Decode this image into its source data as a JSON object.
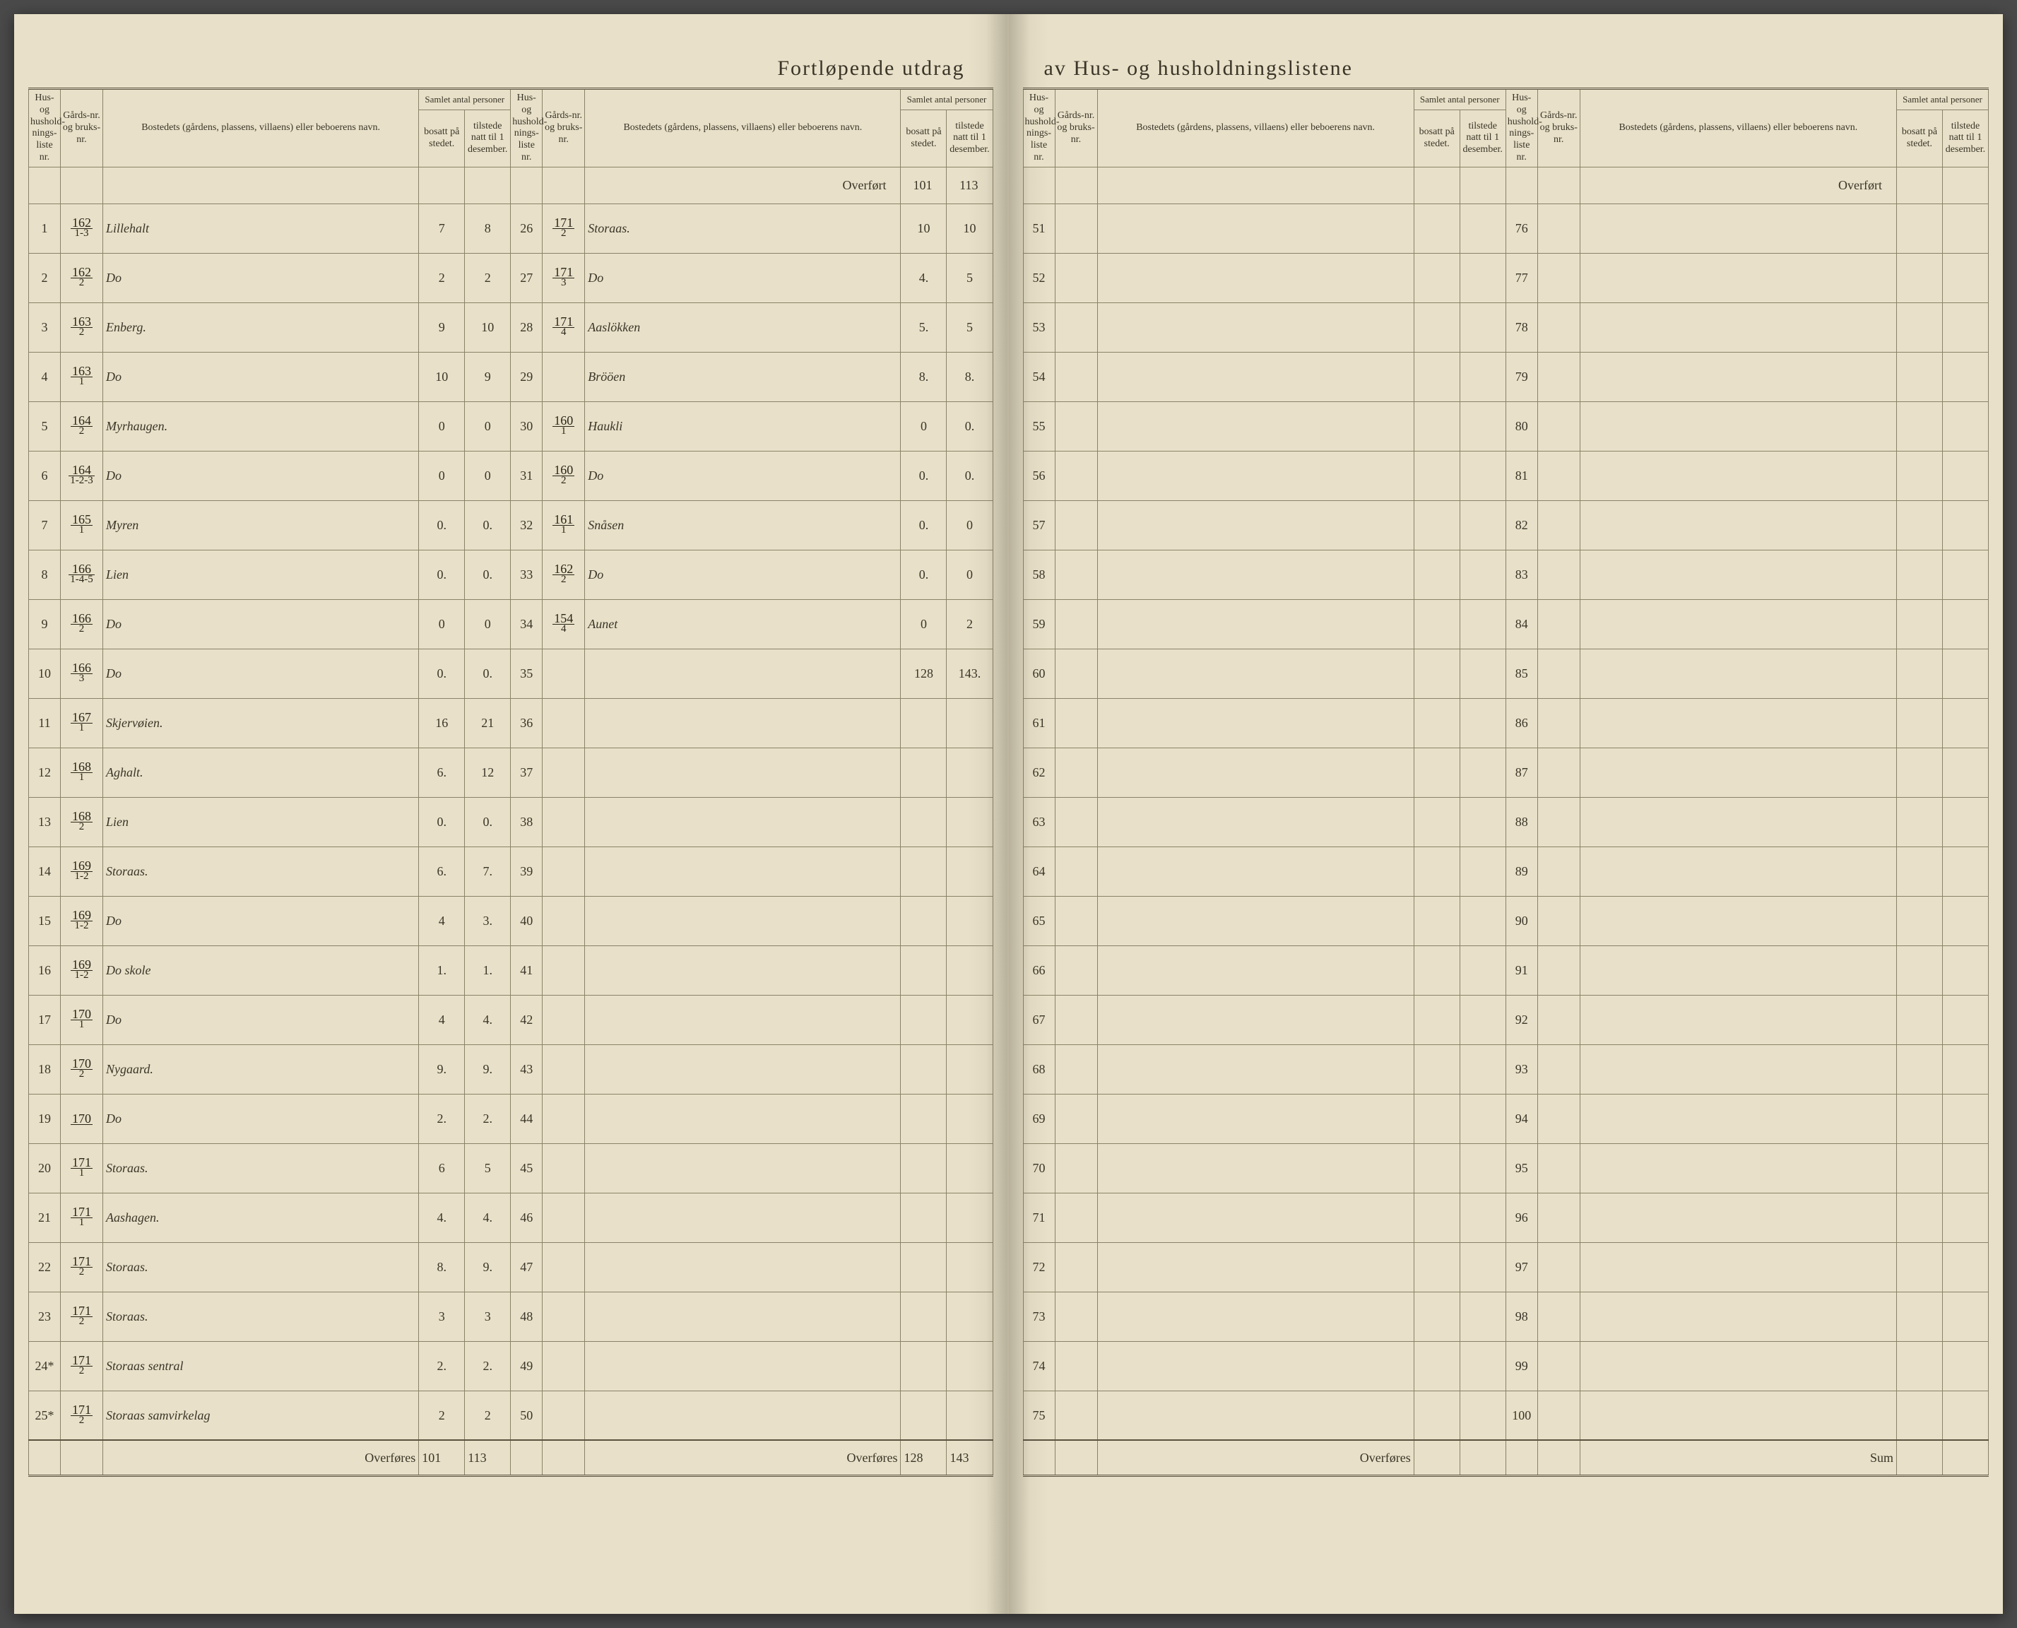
{
  "title_left": "Fortløpende utdrag",
  "title_right": "av Hus- og husholdningslistene",
  "headers": {
    "hus_nr": "Hus- og hushold-nings-liste nr.",
    "gard_nr": "Gårds-nr. og bruks-nr.",
    "bosted": "Bostedets (gårdens, plassens, villaens) eller beboerens navn.",
    "samlet": "Samlet antal personer",
    "bosatt": "bosatt på stedet.",
    "tilstede": "tilstede natt til 1 desember."
  },
  "overfort": "Overført",
  "overfores": "Overføres",
  "sum": "Sum",
  "left_section1": {
    "rows": [
      {
        "nr": "1",
        "gard_n": "162",
        "gard_d": "1-3",
        "bosted": "Lillehalt",
        "bosatt": "7",
        "tilstede": "8"
      },
      {
        "nr": "2",
        "gard_n": "162",
        "gard_d": "2",
        "bosted": "Do",
        "bosatt": "2",
        "tilstede": "2"
      },
      {
        "nr": "3",
        "gard_n": "163",
        "gard_d": "2",
        "bosted": "Enberg.",
        "bosatt": "9",
        "tilstede": "10"
      },
      {
        "nr": "4",
        "gard_n": "163",
        "gard_d": "1",
        "bosted": "Do",
        "bosatt": "10",
        "tilstede": "9"
      },
      {
        "nr": "5",
        "gard_n": "164",
        "gard_d": "2",
        "bosted": "Myrhaugen.",
        "bosatt": "0",
        "tilstede": "0"
      },
      {
        "nr": "6",
        "gard_n": "164",
        "gard_d": "1-2-3",
        "bosted": "Do",
        "bosatt": "0",
        "tilstede": "0"
      },
      {
        "nr": "7",
        "gard_n": "165",
        "gard_d": "1",
        "bosted": "Myren",
        "bosatt": "0.",
        "tilstede": "0."
      },
      {
        "nr": "8",
        "gard_n": "166",
        "gard_d": "1-4-5",
        "bosted": "Lien",
        "bosatt": "0.",
        "tilstede": "0."
      },
      {
        "nr": "9",
        "gard_n": "166",
        "gard_d": "2",
        "bosted": "Do",
        "bosatt": "0",
        "tilstede": "0"
      },
      {
        "nr": "10",
        "gard_n": "166",
        "gard_d": "3",
        "bosted": "Do",
        "bosatt": "0.",
        "tilstede": "0."
      },
      {
        "nr": "11",
        "gard_n": "167",
        "gard_d": "1",
        "bosted": "Skjervøien.",
        "bosatt": "16",
        "tilstede": "21"
      },
      {
        "nr": "12",
        "gard_n": "168",
        "gard_d": "1",
        "bosted": "Aghalt.",
        "bosatt": "6.",
        "tilstede": "12"
      },
      {
        "nr": "13",
        "gard_n": "168",
        "gard_d": "2",
        "bosted": "Lien",
        "bosatt": "0.",
        "tilstede": "0."
      },
      {
        "nr": "14",
        "gard_n": "169",
        "gard_d": "1-2",
        "bosted": "Storaas.",
        "bosatt": "6.",
        "tilstede": "7."
      },
      {
        "nr": "15",
        "gard_n": "169",
        "gard_d": "1-2",
        "bosted": "Do",
        "bosatt": "4",
        "tilstede": "3."
      },
      {
        "nr": "16",
        "gard_n": "169",
        "gard_d": "1-2",
        "bosted": "Do   skole",
        "bosatt": "1.",
        "tilstede": "1."
      },
      {
        "nr": "17",
        "gard_n": "170",
        "gard_d": "1",
        "bosted": "Do",
        "bosatt": "4",
        "tilstede": "4."
      },
      {
        "nr": "18",
        "gard_n": "170",
        "gard_d": "2",
        "bosted": "Nygaard.",
        "bosatt": "9.",
        "tilstede": "9."
      },
      {
        "nr": "19",
        "gard_n": "170",
        "gard_d": "",
        "bosted": "Do",
        "bosatt": "2.",
        "tilstede": "2."
      },
      {
        "nr": "20",
        "gard_n": "171",
        "gard_d": "1",
        "bosted": "Storaas.",
        "bosatt": "6",
        "tilstede": "5"
      },
      {
        "nr": "21",
        "gard_n": "171",
        "gard_d": "1",
        "bosted": "Aashagen.",
        "bosatt": "4.",
        "tilstede": "4."
      },
      {
        "nr": "22",
        "gard_n": "171",
        "gard_d": "2",
        "bosted": "Storaas.",
        "bosatt": "8.",
        "tilstede": "9."
      },
      {
        "nr": "23",
        "gard_n": "171",
        "gard_d": "2",
        "bosted": "Storaas.",
        "bosatt": "3",
        "tilstede": "3"
      },
      {
        "nr": "24*",
        "gard_n": "171",
        "gard_d": "2",
        "bosted": "Storaas sentral",
        "bosatt": "2.",
        "tilstede": "2."
      },
      {
        "nr": "25*",
        "gard_n": "171",
        "gard_d": "2",
        "bosted": "Storaas samvirkelag",
        "bosatt": "2",
        "tilstede": "2"
      }
    ],
    "footer_bosatt": "101",
    "footer_tilstede": "113"
  },
  "left_section2": {
    "overfort_bosatt": "101",
    "overfort_tilstede": "113",
    "rows": [
      {
        "nr": "26",
        "gard_n": "171",
        "gard_d": "2",
        "bosted": "Storaas.",
        "bosatt": "10",
        "tilstede": "10"
      },
      {
        "nr": "27",
        "gard_n": "171",
        "gard_d": "3",
        "bosted": "Do",
        "bosatt": "4.",
        "tilstede": "5"
      },
      {
        "nr": "28",
        "gard_n": "171",
        "gard_d": "4",
        "bosted": "Aaslökken",
        "bosatt": "5.",
        "tilstede": "5"
      },
      {
        "nr": "29",
        "gard_n": "",
        "gard_d": "",
        "bosted": "Brööen",
        "bosatt": "8.",
        "tilstede": "8."
      },
      {
        "nr": "30",
        "gard_n": "160",
        "gard_d": "1",
        "bosted": "Haukli",
        "bosatt": "0",
        "tilstede": "0."
      },
      {
        "nr": "31",
        "gard_n": "160",
        "gard_d": "2",
        "bosted": "Do",
        "bosatt": "0.",
        "tilstede": "0."
      },
      {
        "nr": "32",
        "gard_n": "161",
        "gard_d": "1",
        "bosted": "Snåsen",
        "bosatt": "0.",
        "tilstede": "0"
      },
      {
        "nr": "33",
        "gard_n": "162",
        "gard_d": "2",
        "bosted": "Do",
        "bosatt": "0.",
        "tilstede": "0"
      },
      {
        "nr": "34",
        "gard_n": "154",
        "gard_d": "4",
        "bosted": "Aunet",
        "bosatt": "0",
        "tilstede": "2"
      },
      {
        "nr": "35",
        "gard_n": "",
        "gard_d": "",
        "bosted": "",
        "bosatt": "128",
        "tilstede": "143."
      },
      {
        "nr": "36"
      },
      {
        "nr": "37"
      },
      {
        "nr": "38"
      },
      {
        "nr": "39"
      },
      {
        "nr": "40"
      },
      {
        "nr": "41"
      },
      {
        "nr": "42"
      },
      {
        "nr": "43"
      },
      {
        "nr": "44"
      },
      {
        "nr": "45"
      },
      {
        "nr": "46"
      },
      {
        "nr": "47"
      },
      {
        "nr": "48"
      },
      {
        "nr": "49"
      },
      {
        "nr": "50"
      }
    ],
    "footer_bosatt": "128",
    "footer_tilstede": "143"
  },
  "right_section1": {
    "rows": [
      {
        "nr": "51"
      },
      {
        "nr": "52"
      },
      {
        "nr": "53"
      },
      {
        "nr": "54"
      },
      {
        "nr": "55"
      },
      {
        "nr": "56"
      },
      {
        "nr": "57"
      },
      {
        "nr": "58"
      },
      {
        "nr": "59"
      },
      {
        "nr": "60"
      },
      {
        "nr": "61"
      },
      {
        "nr": "62"
      },
      {
        "nr": "63"
      },
      {
        "nr": "64"
      },
      {
        "nr": "65"
      },
      {
        "nr": "66"
      },
      {
        "nr": "67"
      },
      {
        "nr": "68"
      },
      {
        "nr": "69"
      },
      {
        "nr": "70"
      },
      {
        "nr": "71"
      },
      {
        "nr": "72"
      },
      {
        "nr": "73"
      },
      {
        "nr": "74"
      },
      {
        "nr": "75"
      }
    ]
  },
  "right_section2": {
    "rows": [
      {
        "nr": "76"
      },
      {
        "nr": "77"
      },
      {
        "nr": "78"
      },
      {
        "nr": "79"
      },
      {
        "nr": "80"
      },
      {
        "nr": "81"
      },
      {
        "nr": "82"
      },
      {
        "nr": "83"
      },
      {
        "nr": "84"
      },
      {
        "nr": "85"
      },
      {
        "nr": "86"
      },
      {
        "nr": "87"
      },
      {
        "nr": "88"
      },
      {
        "nr": "89"
      },
      {
        "nr": "90"
      },
      {
        "nr": "91"
      },
      {
        "nr": "92"
      },
      {
        "nr": "93"
      },
      {
        "nr": "94"
      },
      {
        "nr": "95"
      },
      {
        "nr": "96"
      },
      {
        "nr": "97"
      },
      {
        "nr": "98"
      },
      {
        "nr": "99"
      },
      {
        "nr": "100"
      }
    ]
  }
}
